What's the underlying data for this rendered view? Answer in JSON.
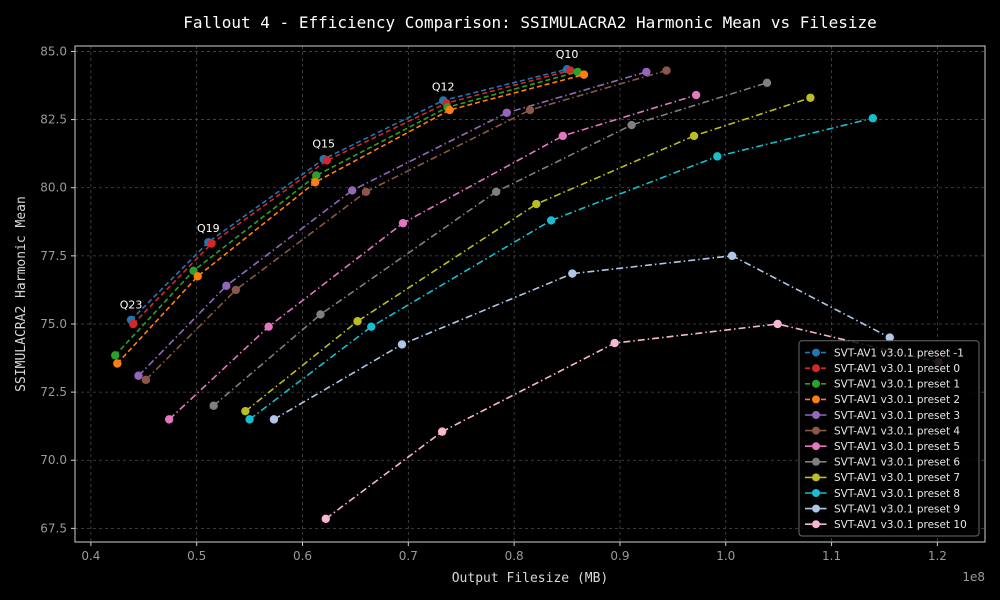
{
  "chart_data": {
    "type": "line",
    "title": "Fallout 4 - Efficiency Comparison: SSIMULACRA2 Harmonic Mean vs Filesize",
    "xlabel": "Output Filesize (MB)",
    "ylabel": "SSIMULACRA2 Harmonic Mean",
    "x_offset_label": "1e8",
    "xlim": [
      0.385,
      1.245
    ],
    "ylim": [
      67.0,
      85.2
    ],
    "xticks": [
      0.4,
      0.5,
      0.6,
      0.7,
      0.8,
      0.9,
      1.0,
      1.1,
      1.2
    ],
    "xtick_labels": [
      "0.4",
      "0.5",
      "0.6",
      "0.7",
      "0.8",
      "0.9",
      "1.0",
      "1.1",
      "1.2"
    ],
    "yticks": [
      67.5,
      70.0,
      72.5,
      75.0,
      77.5,
      80.0,
      82.5,
      85.0
    ],
    "ytick_labels": [
      "67.5",
      "70.0",
      "72.5",
      "75.0",
      "77.5",
      "80.0",
      "82.5",
      "85.0"
    ],
    "grid": true,
    "legend_position": "lower-right",
    "annotations": [
      {
        "text": "Q23",
        "x": 0.438,
        "y": 75.2
      },
      {
        "text": "Q19",
        "x": 0.511,
        "y": 78.0
      },
      {
        "text": "Q15",
        "x": 0.62,
        "y": 81.1
      },
      {
        "text": "Q12",
        "x": 0.733,
        "y": 83.2
      },
      {
        "text": "Q10",
        "x": 0.85,
        "y": 84.4
      }
    ],
    "series": [
      {
        "name": "SVT-AV1 v3.0.1 preset -1",
        "color": "#1f77b4",
        "dash": "dashed",
        "x": [
          0.438,
          0.511,
          0.62,
          0.733,
          0.85
        ],
        "y": [
          75.15,
          78.0,
          81.05,
          83.2,
          84.35
        ]
      },
      {
        "name": "SVT-AV1 v3.0.1 preset 0",
        "color": "#d62728",
        "dash": "dashed",
        "x": [
          0.44,
          0.514,
          0.623,
          0.736,
          0.853
        ],
        "y": [
          75.0,
          77.95,
          81.0,
          83.1,
          84.3
        ]
      },
      {
        "name": "SVT-AV1 v3.0.1 preset 1",
        "color": "#2ca02c",
        "dash": "dashed",
        "x": [
          0.423,
          0.497,
          0.613,
          0.737,
          0.86
        ],
        "y": [
          73.85,
          76.95,
          80.45,
          82.95,
          84.25
        ]
      },
      {
        "name": "SVT-AV1 v3.0.1 preset 2",
        "color": "#ff7f0e",
        "dash": "dashed",
        "x": [
          0.425,
          0.501,
          0.612,
          0.739,
          0.866
        ],
        "y": [
          73.55,
          76.75,
          80.2,
          82.85,
          84.15
        ]
      },
      {
        "name": "SVT-AV1 v3.0.1 preset 3",
        "color": "#9467bd",
        "dash": "dashdot",
        "x": [
          0.445,
          0.528,
          0.647,
          0.793,
          0.925
        ],
        "y": [
          73.1,
          76.4,
          79.9,
          82.75,
          84.25
        ]
      },
      {
        "name": "SVT-AV1 v3.0.1 preset 4",
        "color": "#8c564b",
        "dash": "dashdot",
        "x": [
          0.452,
          0.537,
          0.66,
          0.815,
          0.944
        ],
        "y": [
          72.95,
          76.25,
          79.85,
          82.85,
          84.3
        ]
      },
      {
        "name": "SVT-AV1 v3.0.1 preset 5",
        "color": "#e377c2",
        "dash": "dashdot",
        "x": [
          0.474,
          0.568,
          0.695,
          0.846,
          0.972
        ],
        "y": [
          71.5,
          74.9,
          78.7,
          81.9,
          83.4
        ]
      },
      {
        "name": "SVT-AV1 v3.0.1 preset 6",
        "color": "#7f7f7f",
        "dash": "dashdot",
        "x": [
          0.516,
          0.617,
          0.783,
          0.911,
          1.039
        ],
        "y": [
          72.0,
          75.35,
          79.85,
          82.3,
          83.85
        ]
      },
      {
        "name": "SVT-AV1 v3.0.1 preset 7",
        "color": "#bcbd22",
        "dash": "dashdot",
        "x": [
          0.546,
          0.652,
          0.821,
          0.97,
          1.08
        ],
        "y": [
          71.8,
          75.1,
          79.4,
          81.9,
          83.3
        ]
      },
      {
        "name": "SVT-AV1 v3.0.1 preset 8",
        "color": "#17becf",
        "dash": "dashdot",
        "x": [
          0.55,
          0.665,
          0.835,
          0.992,
          1.139
        ],
        "y": [
          71.5,
          74.9,
          78.8,
          81.15,
          82.55
        ]
      },
      {
        "name": "SVT-AV1 v3.0.1 preset 9",
        "color": "#aec7e8",
        "dash": "dashdot",
        "x": [
          0.573,
          0.694,
          0.855,
          1.006,
          1.155
        ],
        "y": [
          71.5,
          74.25,
          76.85,
          77.5,
          74.5
        ]
      },
      {
        "name": "SVT-AV1 v3.0.1 preset 10",
        "color": "#f7b6d2",
        "dash": "dashdot",
        "x": [
          0.622,
          0.732,
          0.895,
          1.049,
          1.201
        ],
        "y": [
          67.85,
          71.05,
          74.3,
          75.0,
          73.6
        ]
      }
    ]
  }
}
